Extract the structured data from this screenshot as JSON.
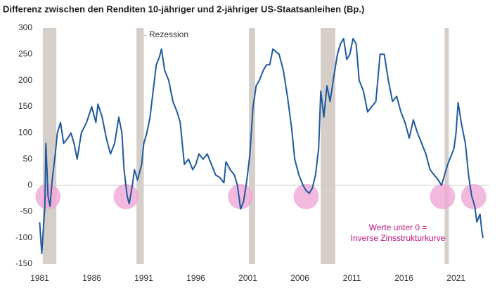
{
  "chart_data": {
    "type": "line",
    "title": "Differenz zwischen den Renditen 10-jähriger und 2-jähriger US-Staatsanleihen (Bp.)",
    "x": [
      1981.0,
      1981.2,
      1981.5,
      1981.6,
      1981.8,
      1982.0,
      1982.2,
      1982.5,
      1982.7,
      1983.0,
      1983.3,
      1983.7,
      1984.0,
      1984.3,
      1984.6,
      1985.0,
      1985.5,
      1986.0,
      1986.4,
      1986.6,
      1987.0,
      1987.4,
      1987.8,
      1988.2,
      1988.6,
      1988.9,
      1989.1,
      1989.4,
      1989.6,
      1989.9,
      1990.1,
      1990.4,
      1990.8,
      1991.0,
      1991.3,
      1991.6,
      1991.9,
      1992.2,
      1992.5,
      1992.7,
      1993.0,
      1993.4,
      1993.8,
      1994.2,
      1994.5,
      1994.9,
      1995.3,
      1995.7,
      1996.0,
      1996.3,
      1996.7,
      1997.1,
      1997.5,
      1997.9,
      1998.3,
      1998.7,
      1998.9,
      1999.3,
      1999.7,
      2000.0,
      2000.3,
      2000.6,
      2000.9,
      2001.2,
      2001.5,
      2001.8,
      2002.1,
      2002.5,
      2002.8,
      2003.1,
      2003.4,
      2003.7,
      2004.0,
      2004.4,
      2004.8,
      2005.2,
      2005.5,
      2005.9,
      2006.3,
      2006.6,
      2006.9,
      2007.2,
      2007.5,
      2007.8,
      2008.0,
      2008.3,
      2008.6,
      2008.9,
      2009.2,
      2009.6,
      2009.9,
      2010.2,
      2010.5,
      2010.8,
      2011.1,
      2011.4,
      2011.7,
      2012.1,
      2012.5,
      2012.9,
      2013.3,
      2013.7,
      2014.1,
      2014.5,
      2014.9,
      2015.3,
      2015.7,
      2016.1,
      2016.5,
      2016.9,
      2017.3,
      2017.7,
      2018.1,
      2018.5,
      2018.9,
      2019.3,
      2019.6,
      2019.9,
      2020.2,
      2020.5,
      2020.8,
      2021.0,
      2021.2,
      2021.5,
      2021.9,
      2022.2,
      2022.5,
      2022.8,
      2023.0,
      2023.3,
      2023.5,
      2023.6
    ],
    "series": [
      {
        "name": "Differenz",
        "color": "#1f5a9e",
        "values": [
          -70,
          -130,
          -40,
          80,
          -20,
          -40,
          10,
          60,
          100,
          120,
          80,
          90,
          100,
          80,
          50,
          100,
          120,
          150,
          120,
          155,
          130,
          90,
          60,
          80,
          130,
          100,
          30,
          -20,
          -35,
          0,
          30,
          10,
          40,
          80,
          100,
          130,
          180,
          230,
          245,
          260,
          220,
          200,
          160,
          140,
          120,
          40,
          50,
          30,
          40,
          60,
          50,
          60,
          40,
          20,
          15,
          5,
          45,
          30,
          20,
          0,
          -45,
          -30,
          10,
          60,
          150,
          190,
          200,
          220,
          230,
          230,
          260,
          255,
          250,
          220,
          170,
          110,
          50,
          20,
          0,
          -10,
          -15,
          -5,
          20,
          70,
          180,
          130,
          190,
          160,
          200,
          250,
          270,
          280,
          240,
          250,
          280,
          270,
          200,
          180,
          140,
          150,
          160,
          250,
          250,
          200,
          160,
          170,
          140,
          120,
          90,
          125,
          100,
          80,
          60,
          30,
          20,
          10,
          0,
          20,
          40,
          55,
          70,
          100,
          158,
          120,
          80,
          20,
          -20,
          -40,
          -70,
          -55,
          -90,
          -100
        ]
      }
    ],
    "xlim": [
      1980.7,
      2024.2
    ],
    "xticks": [
      1981,
      1986,
      1991,
      1996,
      2001,
      2006,
      2011,
      2016,
      2021
    ],
    "ylim": [
      -150,
      300
    ],
    "yticks": [
      -150,
      -100,
      -50,
      0,
      50,
      100,
      150,
      200,
      250,
      300
    ],
    "baseline": 0,
    "recession_label": "Rezession",
    "recession_color": "#d6cfc9",
    "recessions": [
      [
        1981.3,
        1982.6
      ],
      [
        1990.3,
        1991.0
      ],
      [
        2001.1,
        2001.7
      ],
      [
        2008.0,
        2009.4
      ],
      [
        2019.9,
        2020.3
      ]
    ],
    "highlight_color": "#f0a6d4",
    "highlights": [
      1981.8,
      1989.3,
      2000.3,
      2006.6,
      2019.7,
      2022.7
    ],
    "annotation": [
      "Werte unter 0 =",
      "Inverse Zinsstrukturkurve"
    ],
    "annotation_color": "#c0137f"
  }
}
